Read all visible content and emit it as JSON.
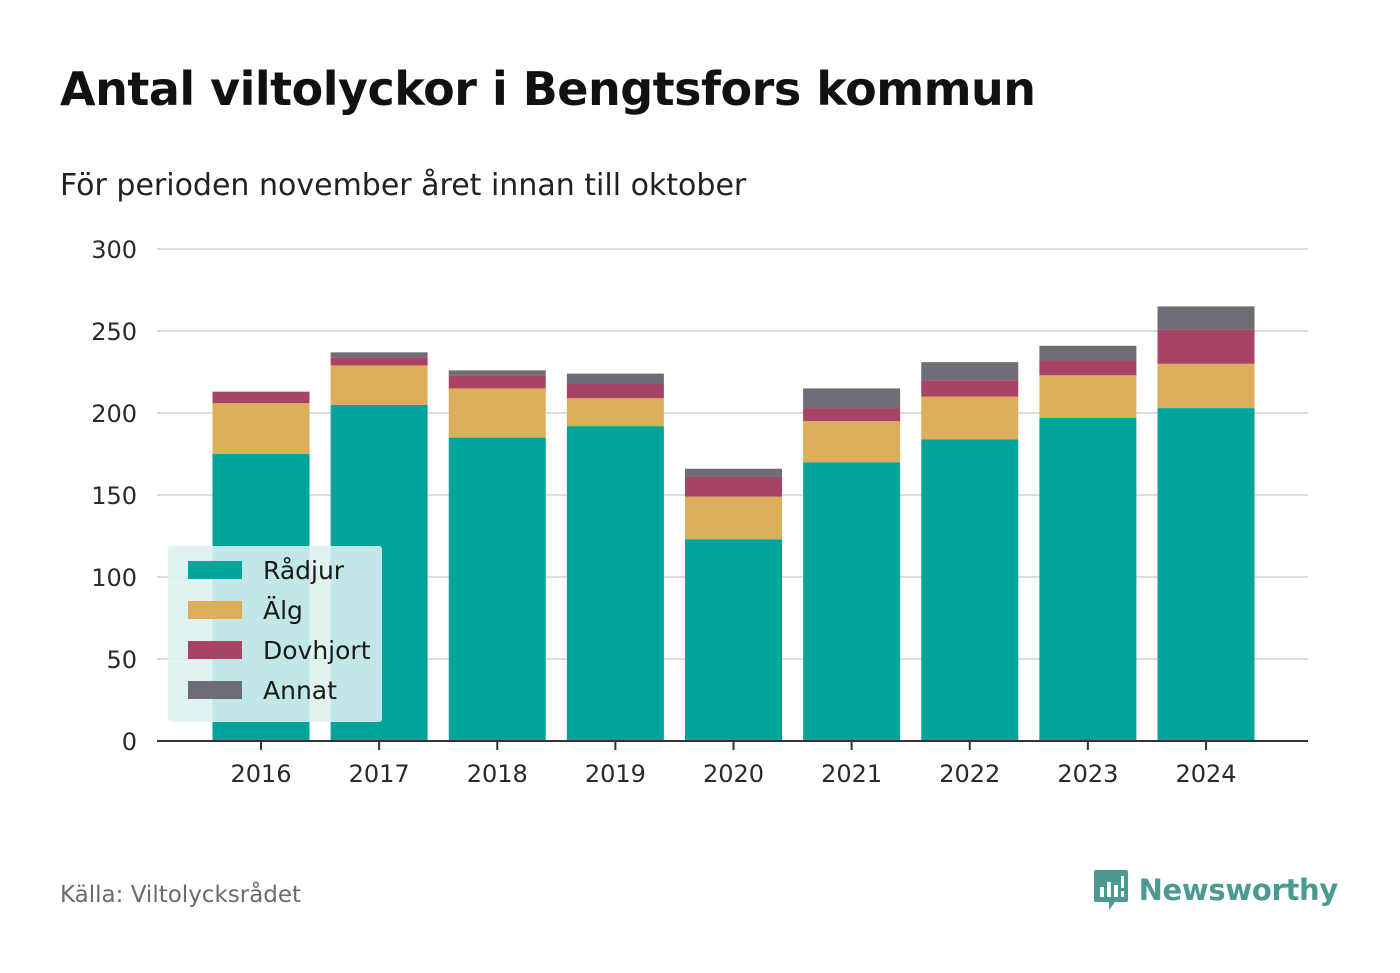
{
  "title": "Antal viltolyckor i Bengtsfors kommun",
  "subtitle": "För perioden november året innan till oktober",
  "source": "Källa: Viltolycksrådet",
  "brand": "Newsworthy",
  "chart_data": {
    "type": "bar",
    "stacked": true,
    "categories": [
      "2016",
      "2017",
      "2018",
      "2019",
      "2020",
      "2021",
      "2022",
      "2023",
      "2024"
    ],
    "series": [
      {
        "name": "Rådjur",
        "color": "#00a49a",
        "values": [
          175,
          205,
          185,
          192,
          123,
          170,
          184,
          197,
          203
        ]
      },
      {
        "name": "Älg",
        "color": "#dcae5a",
        "values": [
          31,
          24,
          30,
          17,
          26,
          25,
          26,
          26,
          27
        ]
      },
      {
        "name": "Dovhjort",
        "color": "#a84266",
        "values": [
          7,
          5,
          8,
          9,
          12,
          8,
          10,
          9,
          21
        ]
      },
      {
        "name": "Annat",
        "color": "#6e6d75",
        "values": [
          0,
          3,
          3,
          6,
          5,
          12,
          11,
          9,
          14
        ]
      }
    ],
    "ylim": [
      0,
      300
    ],
    "yticks": [
      0,
      50,
      100,
      150,
      200,
      250,
      300
    ],
    "xlabel": "",
    "ylabel": "",
    "grid": true,
    "legend_position": "bottom-left"
  }
}
